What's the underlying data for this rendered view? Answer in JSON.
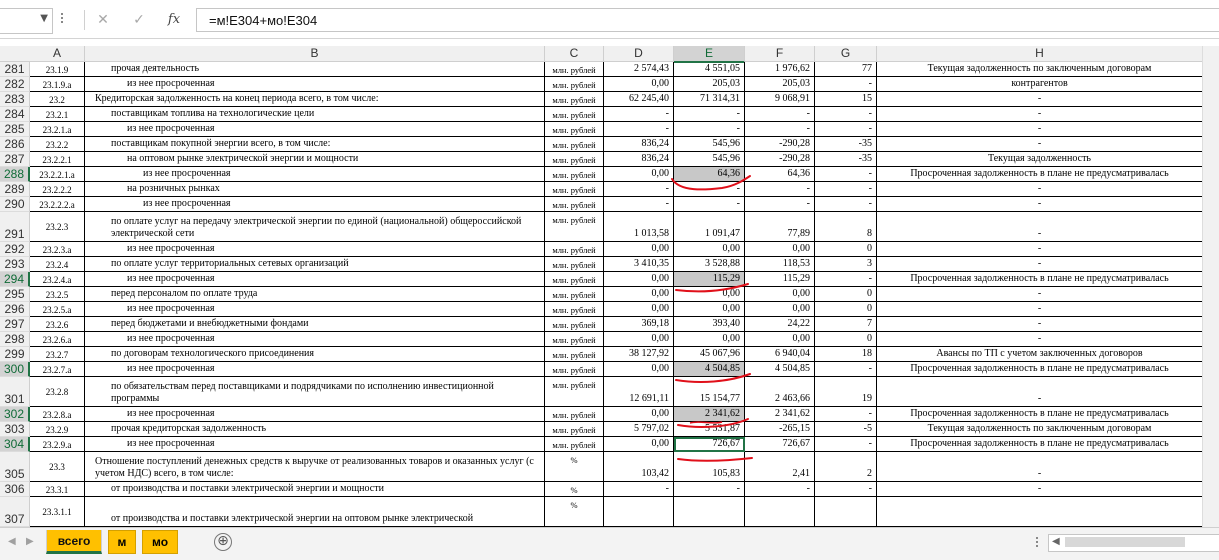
{
  "formula_bar": {
    "name_box": "",
    "cancel_symbol": "✕",
    "enter_symbol": "✓",
    "fx_symbol": "fx",
    "formula": "=м!E304+мо!E304"
  },
  "columns": [
    "A",
    "B",
    "C",
    "D",
    "E",
    "F",
    "G",
    "H"
  ],
  "selected_column": "E",
  "rows": [
    {
      "n": "281",
      "a": "23.1.9",
      "b": "прочая деятельность",
      "indent": 1,
      "c": "млн. рублей",
      "d": "2 574,43",
      "e": "4 551,05",
      "f": "1 976,62",
      "g": "77",
      "h": "Текущая задолженность по заключенным договорам"
    },
    {
      "n": "282",
      "a": "23.1.9.а",
      "b": "из нее просроченная",
      "indent": 2,
      "c": "млн. рублей",
      "d": "0,00",
      "e": "205,03",
      "f": "205,03",
      "g": "-",
      "h": "Неисполнение договорных  обязательств по оплате со стороны контрагентов"
    },
    {
      "n": "283",
      "a": "23.2",
      "b": "Кредиторская задолженность на конец периода всего, в том числе:",
      "indent": 0,
      "c": "млн. рублей",
      "d": "62 245,40",
      "e": "71 314,31",
      "f": "9 068,91",
      "g": "15",
      "h": "-"
    },
    {
      "n": "284",
      "a": "23.2.1",
      "b": "поставщикам топлива на технологические цели",
      "indent": 1,
      "c": "млн. рублей",
      "d": "-",
      "e": "-",
      "f": "-",
      "g": "-",
      "h": "-"
    },
    {
      "n": "285",
      "a": "23.2.1.а",
      "b": "из нее просроченная",
      "indent": 2,
      "c": "млн. рублей",
      "d": "-",
      "e": "-",
      "f": "-",
      "g": "-",
      "h": "-"
    },
    {
      "n": "286",
      "a": "23.2.2",
      "b": "поставщикам покупной энергии всего, в том числе:",
      "indent": 1,
      "c": "млн. рублей",
      "d": "836,24",
      "e": "545,96",
      "f": "-290,28",
      "g": "-35",
      "h": "-"
    },
    {
      "n": "287",
      "a": "23.2.2.1",
      "b": "на оптовом рынке электрической энергии и мощности",
      "indent": 2,
      "c": "млн. рублей",
      "d": "836,24",
      "e": "545,96",
      "f": "-290,28",
      "g": "-35",
      "h": "Текущая задолженность"
    },
    {
      "n": "288",
      "a": "23.2.2.1.а",
      "b": "из нее просроченная",
      "indent": 3,
      "c": "млн. рублей",
      "d": "0,00",
      "e": "64,36",
      "f": "64,36",
      "g": "-",
      "h": "Просроченная задолженность в плане не предусматривалась",
      "sel": true,
      "ehl": true
    },
    {
      "n": "289",
      "a": "23.2.2.2",
      "b": "на розничных рынках",
      "indent": 2,
      "c": "млн. рублей",
      "d": "-",
      "e": "-",
      "f": "-",
      "g": "-",
      "h": "-"
    },
    {
      "n": "290",
      "a": "23.2.2.2.а",
      "b": "из нее просроченная",
      "indent": 3,
      "c": "млн. рублей",
      "d": "-",
      "e": "-",
      "f": "-",
      "g": "-",
      "h": "-"
    },
    {
      "n": "291",
      "a": "23.2.3",
      "b": "по оплате услуг на передачу электрической энергии по единой (национальной) общероссийской электрической сети",
      "indent": 1,
      "c": "млн. рублей",
      "d": "1 013,58",
      "e": "1 091,47",
      "f": "77,89",
      "g": "8",
      "h": "-",
      "tall": true
    },
    {
      "n": "292",
      "a": "23.2.3.а",
      "b": "из нее просроченная",
      "indent": 2,
      "c": "млн. рублей",
      "d": "0,00",
      "e": "0,00",
      "f": "0,00",
      "g": "0",
      "h": "-"
    },
    {
      "n": "293",
      "a": "23.2.4",
      "b": "по оплате услуг территориальных сетевых организаций",
      "indent": 1,
      "c": "млн. рублей",
      "d": "3 410,35",
      "e": "3 528,88",
      "f": "118,53",
      "g": "3",
      "h": "-"
    },
    {
      "n": "294",
      "a": "23.2.4.а",
      "b": "из нее просроченная",
      "indent": 2,
      "c": "млн. рублей",
      "d": "0,00",
      "e": "115,29",
      "f": "115,29",
      "g": "-",
      "h": "Просроченная задолженность в плане не предусматривалась",
      "sel": true,
      "ehl": true
    },
    {
      "n": "295",
      "a": "23.2.5",
      "b": "перед персоналом по оплате труда",
      "indent": 1,
      "c": "млн. рублей",
      "d": "0,00",
      "e": "0,00",
      "f": "0,00",
      "g": "0",
      "h": "-"
    },
    {
      "n": "296",
      "a": "23.2.5.а",
      "b": "из нее просроченная",
      "indent": 2,
      "c": "млн. рублей",
      "d": "0,00",
      "e": "0,00",
      "f": "0,00",
      "g": "0",
      "h": "-"
    },
    {
      "n": "297",
      "a": "23.2.6",
      "b": "перед бюджетами и внебюджетными фондами",
      "indent": 1,
      "c": "млн. рублей",
      "d": "369,18",
      "e": "393,40",
      "f": "24,22",
      "g": "7",
      "h": "-"
    },
    {
      "n": "298",
      "a": "23.2.6.а",
      "b": "из нее просроченная",
      "indent": 2,
      "c": "млн. рублей",
      "d": "0,00",
      "e": "0,00",
      "f": "0,00",
      "g": "0",
      "h": "-"
    },
    {
      "n": "299",
      "a": "23.2.7",
      "b": "по договорам технологического присоединения",
      "indent": 1,
      "c": "млн. рублей",
      "d": "38 127,92",
      "e": "45 067,96",
      "f": "6 940,04",
      "g": "18",
      "h": "Авансы по ТП с учетом заключенных договоров"
    },
    {
      "n": "300",
      "a": "23.2.7.а",
      "b": "из нее просроченная",
      "indent": 2,
      "c": "млн. рублей",
      "d": "0,00",
      "e": "4 504,85",
      "f": "4 504,85",
      "g": "-",
      "h": "Просроченная задолженность в плане не предусматривалась",
      "sel": true,
      "ehl": true
    },
    {
      "n": "301",
      "a": "23.2.8",
      "b": "по обязательствам перед поставщиками и подрядчиками по исполнению инвестиционной программы",
      "indent": 1,
      "c": "млн. рублей",
      "d": "12 691,11",
      "e": "15 154,77",
      "f": "2 463,66",
      "g": "19",
      "h": "-",
      "tall": true
    },
    {
      "n": "302",
      "a": "23.2.8.а",
      "b": "из нее просроченная",
      "indent": 2,
      "c": "млн. рублей",
      "d": "0,00",
      "e": "2 341,62",
      "f": "2 341,62",
      "g": "-",
      "h": "Просроченная задолженность в плане не предусматривалась",
      "sel": true,
      "ehl": true
    },
    {
      "n": "303",
      "a": "23.2.9",
      "b": "прочая кредиторская задолженность",
      "indent": 1,
      "c": "млн. рублей",
      "d": "5 797,02",
      "e": "5 531,87",
      "f": "-265,15",
      "g": "-5",
      "h": "Текущая задолженность по заключенным договорам"
    },
    {
      "n": "304",
      "a": "23.2.9.а",
      "b": "из нее просроченная",
      "indent": 2,
      "c": "млн. рублей",
      "d": "0,00",
      "e": "726,67",
      "f": "726,67",
      "g": "-",
      "h": "Просроченная задолженность в плане не предусматривалась",
      "sel": true,
      "active": true
    },
    {
      "n": "305",
      "a": "23.3",
      "b": "Отношение поступлений денежных средств к выручке от реализованных товаров и оказанных услуг (с учетом НДС) всего, в том числе:",
      "indent": 0,
      "c": "%",
      "d": "103,42",
      "e": "105,83",
      "f": "2,41",
      "g": "2",
      "h": "-",
      "tall": true
    },
    {
      "n": "306",
      "a": "23.3.1",
      "b": "от производства и поставки электрической энергии и мощности",
      "indent": 1,
      "c": "%",
      "d": "-",
      "e": "-",
      "f": "-",
      "g": "-",
      "h": "-"
    },
    {
      "n": "307",
      "a": "23.3.1.1",
      "b": "от производства и поставки электрической энергии на оптовом рынке электрической",
      "indent": 1,
      "c": "%",
      "d": "",
      "e": "",
      "f": "",
      "g": "",
      "h": "",
      "tall": true
    }
  ],
  "sheet_tabs": [
    {
      "label": "всего",
      "active": true
    },
    {
      "label": "м",
      "active": false
    },
    {
      "label": "мо",
      "active": false
    }
  ],
  "add_sheet_symbol": "⊕",
  "colors": {
    "excel_green": "#217346",
    "tab_orange": "#ffc000",
    "annotation_red": "#e0101a",
    "highlight_gray": "#c8c8c8"
  }
}
